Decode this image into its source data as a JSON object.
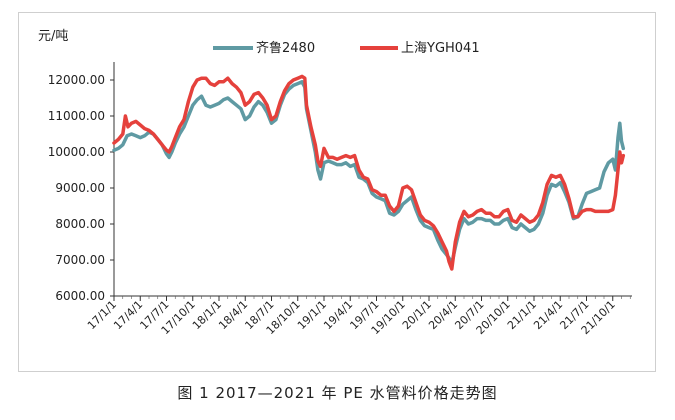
{
  "caption": "图 1  2017—2021 年 PE 水管料价格走势图",
  "chart_data": {
    "type": "line",
    "unit_label": "元/吨",
    "ylim": [
      6000,
      12500
    ],
    "yticks": [
      "6000.00",
      "7000.00",
      "8000.00",
      "9000.00",
      "10000.00",
      "11000.00",
      "12000.00"
    ],
    "ytick_values": [
      6000,
      7000,
      8000,
      9000,
      10000,
      11000,
      12000
    ],
    "x_tick_labels": [
      "17/1/1",
      "17/4/1",
      "17/7/1",
      "17/10/1",
      "18/1/1",
      "18/4/1",
      "18/7/1",
      "18/10/1",
      "19/1/1",
      "19/4/1",
      "19/7/1",
      "19/10/1",
      "20/1/1",
      "20/4/1",
      "20/7/1",
      "20/10/1",
      "21/1/1",
      "21/4/1",
      "21/7/1",
      "21/10/1"
    ],
    "x_tick_positions": [
      0,
      3,
      6,
      9,
      12,
      15,
      18,
      21,
      24,
      27,
      30,
      33,
      36,
      39,
      42,
      45,
      48,
      51,
      54,
      57
    ],
    "x_range_months": [
      0,
      59.2
    ],
    "grid": false,
    "legend_position": "top-center",
    "series": [
      {
        "name": "齐鲁2480",
        "color": "#5f9aa3",
        "points": [
          [
            0,
            10050
          ],
          [
            0.5,
            10100
          ],
          [
            1,
            10200
          ],
          [
            1.5,
            10450
          ],
          [
            2,
            10500
          ],
          [
            2.5,
            10450
          ],
          [
            3,
            10400
          ],
          [
            3.5,
            10450
          ],
          [
            4,
            10550
          ],
          [
            4.5,
            10500
          ],
          [
            5,
            10350
          ],
          [
            5.5,
            10200
          ],
          [
            6,
            9950
          ],
          [
            6.3,
            9850
          ],
          [
            6.6,
            10000
          ],
          [
            7,
            10250
          ],
          [
            7.5,
            10500
          ],
          [
            8,
            10700
          ],
          [
            8.5,
            11000
          ],
          [
            9,
            11300
          ],
          [
            9.5,
            11450
          ],
          [
            10,
            11550
          ],
          [
            10.5,
            11300
          ],
          [
            11,
            11250
          ],
          [
            11.5,
            11300
          ],
          [
            12,
            11350
          ],
          [
            12.5,
            11450
          ],
          [
            13,
            11500
          ],
          [
            13.5,
            11400
          ],
          [
            14,
            11300
          ],
          [
            14.5,
            11200
          ],
          [
            15,
            10900
          ],
          [
            15.5,
            11000
          ],
          [
            16,
            11250
          ],
          [
            16.5,
            11400
          ],
          [
            17,
            11300
          ],
          [
            17.5,
            11100
          ],
          [
            18,
            10800
          ],
          [
            18.5,
            10900
          ],
          [
            19,
            11300
          ],
          [
            19.5,
            11600
          ],
          [
            20,
            11750
          ],
          [
            20.5,
            11850
          ],
          [
            21,
            11900
          ],
          [
            21.5,
            11950
          ],
          [
            21.8,
            11800
          ],
          [
            22,
            11200
          ],
          [
            22.5,
            10600
          ],
          [
            23,
            10000
          ],
          [
            23.3,
            9500
          ],
          [
            23.6,
            9250
          ],
          [
            24,
            9700
          ],
          [
            24.5,
            9750
          ],
          [
            25,
            9700
          ],
          [
            25.5,
            9650
          ],
          [
            26,
            9650
          ],
          [
            26.5,
            9700
          ],
          [
            27,
            9600
          ],
          [
            27.5,
            9650
          ],
          [
            28,
            9300
          ],
          [
            28.5,
            9250
          ],
          [
            29,
            9150
          ],
          [
            29.5,
            8850
          ],
          [
            30,
            8750
          ],
          [
            30.5,
            8700
          ],
          [
            31,
            8650
          ],
          [
            31.5,
            8300
          ],
          [
            32,
            8250
          ],
          [
            32.5,
            8350
          ],
          [
            33,
            8550
          ],
          [
            33.5,
            8650
          ],
          [
            34,
            8750
          ],
          [
            34.5,
            8400
          ],
          [
            35,
            8100
          ],
          [
            35.5,
            7950
          ],
          [
            36,
            7900
          ],
          [
            36.5,
            7850
          ],
          [
            37,
            7550
          ],
          [
            37.5,
            7300
          ],
          [
            38,
            7150
          ],
          [
            38.3,
            7050
          ],
          [
            38.6,
            6900
          ],
          [
            39,
            7350
          ],
          [
            39.5,
            7850
          ],
          [
            40,
            8150
          ],
          [
            40.5,
            8000
          ],
          [
            41,
            8050
          ],
          [
            41.5,
            8150
          ],
          [
            42,
            8150
          ],
          [
            42.5,
            8100
          ],
          [
            43,
            8100
          ],
          [
            43.5,
            8000
          ],
          [
            44,
            8000
          ],
          [
            44.5,
            8100
          ],
          [
            45,
            8150
          ],
          [
            45.5,
            7900
          ],
          [
            46,
            7850
          ],
          [
            46.5,
            8000
          ],
          [
            47,
            7900
          ],
          [
            47.5,
            7800
          ],
          [
            48,
            7850
          ],
          [
            48.5,
            8000
          ],
          [
            49,
            8300
          ],
          [
            49.5,
            8800
          ],
          [
            50,
            9100
          ],
          [
            50.5,
            9050
          ],
          [
            51,
            9150
          ],
          [
            51.5,
            8900
          ],
          [
            52,
            8600
          ],
          [
            52.5,
            8150
          ],
          [
            53,
            8200
          ],
          [
            53.5,
            8550
          ],
          [
            54,
            8850
          ],
          [
            54.5,
            8900
          ],
          [
            55,
            8950
          ],
          [
            55.5,
            9000
          ],
          [
            56,
            9450
          ],
          [
            56.5,
            9700
          ],
          [
            57,
            9800
          ],
          [
            57.3,
            9500
          ],
          [
            57.6,
            10400
          ],
          [
            57.8,
            10800
          ],
          [
            58,
            10300
          ],
          [
            58.2,
            10100
          ]
        ]
      },
      {
        "name": "上海YGH041",
        "color": "#e5413c",
        "points": [
          [
            0,
            10250
          ],
          [
            0.5,
            10350
          ],
          [
            1,
            10500
          ],
          [
            1.3,
            11000
          ],
          [
            1.6,
            10700
          ],
          [
            2,
            10800
          ],
          [
            2.5,
            10850
          ],
          [
            3,
            10750
          ],
          [
            3.5,
            10650
          ],
          [
            4,
            10600
          ],
          [
            4.5,
            10500
          ],
          [
            5,
            10350
          ],
          [
            5.5,
            10200
          ],
          [
            6,
            10050
          ],
          [
            6.3,
            10000
          ],
          [
            6.6,
            10150
          ],
          [
            7,
            10400
          ],
          [
            7.5,
            10700
          ],
          [
            8,
            10900
          ],
          [
            8.5,
            11400
          ],
          [
            9,
            11800
          ],
          [
            9.5,
            12000
          ],
          [
            10,
            12050
          ],
          [
            10.5,
            12050
          ],
          [
            11,
            11900
          ],
          [
            11.5,
            11850
          ],
          [
            12,
            11950
          ],
          [
            12.5,
            11950
          ],
          [
            13,
            12050
          ],
          [
            13.5,
            11900
          ],
          [
            14,
            11800
          ],
          [
            14.5,
            11650
          ],
          [
            15,
            11300
          ],
          [
            15.5,
            11400
          ],
          [
            16,
            11600
          ],
          [
            16.5,
            11650
          ],
          [
            17,
            11500
          ],
          [
            17.5,
            11300
          ],
          [
            18,
            10900
          ],
          [
            18.5,
            11000
          ],
          [
            19,
            11400
          ],
          [
            19.5,
            11700
          ],
          [
            20,
            11900
          ],
          [
            20.5,
            12000
          ],
          [
            21,
            12050
          ],
          [
            21.5,
            12100
          ],
          [
            21.8,
            12050
          ],
          [
            22,
            11300
          ],
          [
            22.5,
            10700
          ],
          [
            23,
            10200
          ],
          [
            23.3,
            9750
          ],
          [
            23.6,
            9600
          ],
          [
            24,
            10100
          ],
          [
            24.5,
            9850
          ],
          [
            25,
            9850
          ],
          [
            25.5,
            9800
          ],
          [
            26,
            9850
          ],
          [
            26.5,
            9900
          ],
          [
            27,
            9850
          ],
          [
            27.5,
            9900
          ],
          [
            28,
            9500
          ],
          [
            28.5,
            9300
          ],
          [
            29,
            9250
          ],
          [
            29.5,
            8950
          ],
          [
            30,
            8900
          ],
          [
            30.5,
            8800
          ],
          [
            31,
            8800
          ],
          [
            31.5,
            8500
          ],
          [
            32,
            8350
          ],
          [
            32.5,
            8500
          ],
          [
            33,
            9000
          ],
          [
            33.5,
            9050
          ],
          [
            34,
            8950
          ],
          [
            34.5,
            8600
          ],
          [
            35,
            8250
          ],
          [
            35.5,
            8100
          ],
          [
            36,
            8050
          ],
          [
            36.5,
            7950
          ],
          [
            37,
            7750
          ],
          [
            37.5,
            7500
          ],
          [
            38,
            7250
          ],
          [
            38.3,
            6950
          ],
          [
            38.6,
            6750
          ],
          [
            39,
            7500
          ],
          [
            39.5,
            8050
          ],
          [
            40,
            8350
          ],
          [
            40.5,
            8200
          ],
          [
            41,
            8250
          ],
          [
            41.5,
            8350
          ],
          [
            42,
            8400
          ],
          [
            42.5,
            8300
          ],
          [
            43,
            8300
          ],
          [
            43.5,
            8200
          ],
          [
            44,
            8200
          ],
          [
            44.5,
            8350
          ],
          [
            45,
            8400
          ],
          [
            45.5,
            8100
          ],
          [
            46,
            8050
          ],
          [
            46.5,
            8250
          ],
          [
            47,
            8150
          ],
          [
            47.5,
            8050
          ],
          [
            48,
            8100
          ],
          [
            48.5,
            8250
          ],
          [
            49,
            8600
          ],
          [
            49.5,
            9100
          ],
          [
            50,
            9350
          ],
          [
            50.5,
            9300
          ],
          [
            51,
            9350
          ],
          [
            51.5,
            9100
          ],
          [
            52,
            8700
          ],
          [
            52.5,
            8200
          ],
          [
            53,
            8200
          ],
          [
            53.5,
            8350
          ],
          [
            54,
            8400
          ],
          [
            54.5,
            8400
          ],
          [
            55,
            8350
          ],
          [
            55.5,
            8350
          ],
          [
            56,
            8350
          ],
          [
            56.5,
            8350
          ],
          [
            57,
            8400
          ],
          [
            57.3,
            8800
          ],
          [
            57.6,
            9500
          ],
          [
            57.8,
            10000
          ],
          [
            58,
            9700
          ],
          [
            58.2,
            9900
          ]
        ]
      }
    ]
  }
}
